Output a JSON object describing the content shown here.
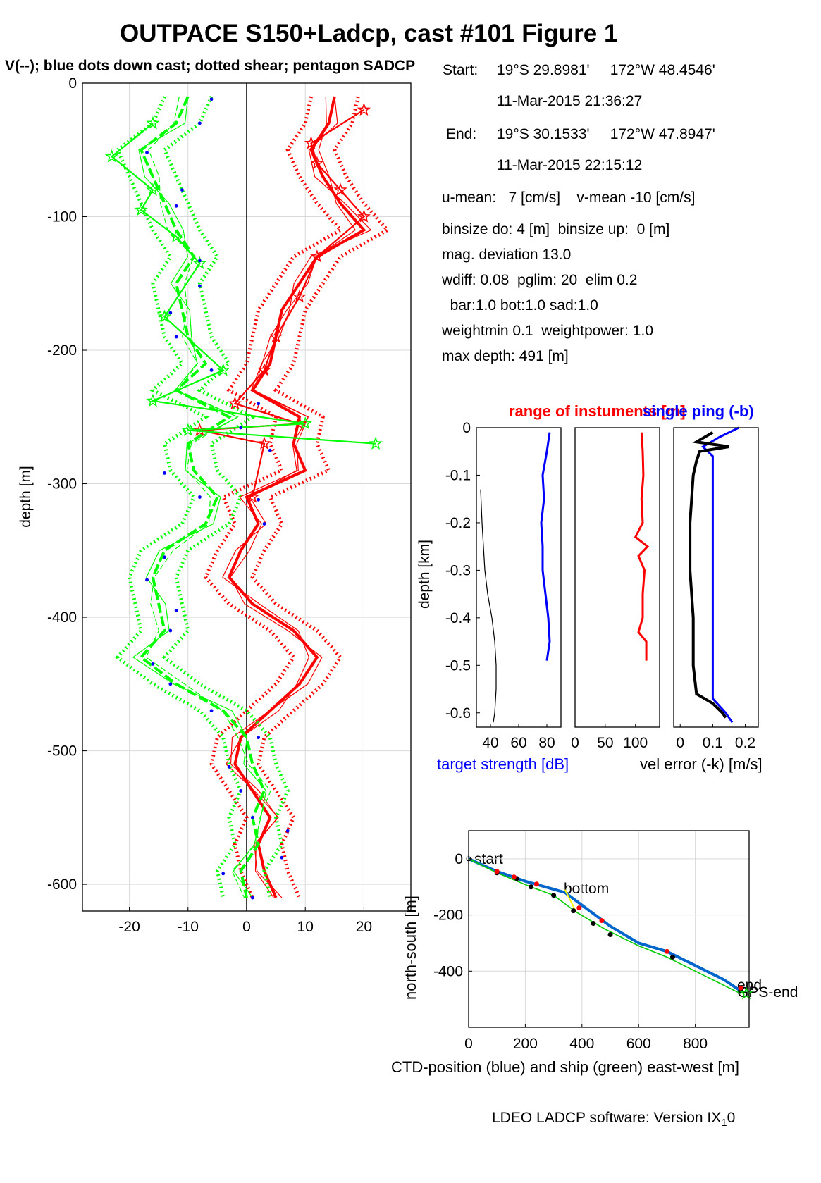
{
  "figure": {
    "title": "OUTPACE S150+Ladcp, cast #101  Figure 1",
    "subtitle": "V(--); blue dots down cast; dotted shear; pentagon SADCP",
    "footer": "LDEO LADCP software: Version IX",
    "footer_sub": "1",
    "footer_tail": "0"
  },
  "info": {
    "start_label": "Start:",
    "start_pos": "19°S 29.8981'     172°W 48.4546'",
    "start_time": "11-Mar-2015 21:36:27",
    "end_label": "End:",
    "end_pos": "19°S 30.1533'     172°W 47.8947'",
    "end_time": "11-Mar-2015 22:15:12",
    "lines": [
      "u-mean:   7 [cm/s]    v-mean -10 [cm/s]",
      "binsize do: 4 [m]  binsize up:  0 [m]",
      "mag. deviation 13.0",
      "wdiff: 0.08  pglim: 20  elim 0.2",
      "  bar:1.0 bot:1.0 sad:1.0",
      "weightmin 0.1  weightpower: 1.0",
      "max depth: 491 [m]"
    ]
  },
  "colors": {
    "u": "#ff0000",
    "v": "#00ff00",
    "blue": "#0000ff",
    "ship": "#00cc00",
    "ctd": "#0066cc"
  },
  "chart_data": [
    {
      "id": "velocity-profile",
      "type": "line",
      "ylabel": "depth [m]",
      "xlim": [
        -28,
        28
      ],
      "ylim": [
        -620,
        0
      ],
      "xticks": [
        -20,
        -10,
        0,
        10,
        20
      ],
      "yticks": [
        0,
        -100,
        -200,
        -300,
        -400,
        -500,
        -600
      ],
      "grid": true,
      "depth": [
        -10,
        -30,
        -50,
        -70,
        -90,
        -110,
        -130,
        -150,
        -170,
        -190,
        -210,
        -230,
        -250,
        -270,
        -290,
        -310,
        -330,
        -350,
        -370,
        -390,
        -410,
        -430,
        -450,
        -470,
        -490,
        -510,
        -530,
        -550,
        -570,
        -590,
        -610
      ],
      "series": [
        {
          "color": "#ff0000",
          "values": [
            15,
            14,
            11,
            13,
            16,
            20,
            12,
            9,
            6,
            5,
            4,
            1,
            9,
            8,
            10,
            0,
            2,
            -1,
            -3,
            1,
            8,
            12,
            9,
            4,
            -1,
            -2,
            1,
            4,
            2,
            3,
            5
          ]
        },
        {
          "color": "#00ff00",
          "values": [
            -10,
            -12,
            -18,
            -16,
            -14,
            -12,
            -9,
            -12,
            -11,
            -10,
            -7,
            -12,
            -3,
            -10,
            -9,
            -5,
            -7,
            -14,
            -16,
            -15,
            -14,
            -18,
            -12,
            -4,
            0,
            1,
            3,
            1,
            2,
            -1,
            0
          ]
        }
      ],
      "sadcp": [
        {
          "name": "u",
          "color": "#ff0000",
          "points": [
            [
              20,
              -20
            ],
            [
              11,
              -45
            ],
            [
              12,
              -60
            ],
            [
              16,
              -80
            ],
            [
              20,
              -100
            ],
            [
              12,
              -130
            ],
            [
              9,
              -160
            ],
            [
              5,
              -190
            ],
            [
              3,
              -215
            ],
            [
              -2,
              -240
            ],
            [
              9,
              -255
            ],
            [
              -8,
              -260
            ],
            [
              3,
              -270
            ],
            [
              1,
              -310
            ]
          ]
        },
        {
          "name": "v",
          "color": "#00ff00",
          "points": [
            [
              -16,
              -30
            ],
            [
              -23,
              -55
            ],
            [
              -16,
              -80
            ],
            [
              -18,
              -95
            ],
            [
              -12,
              -115
            ],
            [
              -8,
              -135
            ],
            [
              -14,
              -175
            ],
            [
              -4,
              -215
            ],
            [
              -16,
              -238
            ],
            [
              10,
              -255
            ],
            [
              -10,
              -260
            ],
            [
              22,
              -270
            ]
          ]
        }
      ],
      "down_cast_dots": {
        "color": "#0000ff",
        "points": [
          [
            -6,
            -12
          ],
          [
            -8,
            -30
          ],
          [
            -17,
            -52
          ],
          [
            -11,
            -80
          ],
          [
            -12,
            -92
          ],
          [
            -8,
            -133
          ],
          [
            -8,
            -152
          ],
          [
            -13,
            -172
          ],
          [
            -12,
            -190
          ],
          [
            -6,
            -215
          ],
          [
            2,
            -240
          ],
          [
            -1,
            -258
          ],
          [
            4,
            -275
          ],
          [
            -14,
            -292
          ],
          [
            -8,
            -310
          ],
          [
            2,
            -312
          ],
          [
            3,
            -330
          ],
          [
            -14,
            -355
          ],
          [
            -17,
            -372
          ],
          [
            -12,
            -395
          ],
          [
            -13,
            -410
          ],
          [
            -16,
            -435
          ],
          [
            -13,
            -450
          ],
          [
            -6,
            -470
          ],
          [
            2,
            -490
          ],
          [
            -3,
            -512
          ],
          [
            -1,
            -530
          ],
          [
            1,
            -550
          ],
          [
            7,
            -560
          ],
          [
            6,
            -580
          ],
          [
            -4,
            -592
          ],
          [
            1,
            -610
          ]
        ]
      }
    },
    {
      "id": "target-strength",
      "type": "line",
      "ylabel": "depth [km]",
      "xlabel": "target strength [dB]",
      "xlim": [
        30,
        90
      ],
      "xticks": [
        40,
        60,
        80
      ],
      "ylim": [
        -0.63,
        0
      ],
      "yticks": [
        0,
        -0.1,
        -0.2,
        -0.3,
        -0.4,
        -0.5,
        -0.6
      ],
      "series": [
        {
          "color": "#0000ff",
          "depth": [
            -0.01,
            -0.05,
            -0.1,
            -0.15,
            -0.2,
            -0.25,
            -0.3,
            -0.35,
            -0.4,
            -0.45,
            -0.49
          ],
          "values": [
            82,
            80,
            77,
            78,
            76,
            77,
            77,
            79,
            81,
            82,
            80
          ]
        },
        {
          "color": "#000000",
          "depth": [
            -0.13,
            -0.2,
            -0.3,
            -0.35,
            -0.4,
            -0.45,
            -0.5,
            -0.55,
            -0.6,
            -0.62
          ],
          "values": [
            33,
            34,
            36,
            38,
            41,
            43,
            44,
            44,
            43,
            42
          ]
        }
      ]
    },
    {
      "id": "instrument-range",
      "type": "line",
      "title": "range of instuments [m]",
      "xlim": [
        0,
        140
      ],
      "xticks": [
        0,
        50,
        100
      ],
      "ylim": [
        -0.63,
        0
      ],
      "series": [
        {
          "color": "#ff0000",
          "depth": [
            -0.01,
            -0.05,
            -0.1,
            -0.15,
            -0.2,
            -0.23,
            -0.25,
            -0.27,
            -0.3,
            -0.35,
            -0.4,
            -0.43,
            -0.45,
            -0.49
          ],
          "values": [
            110,
            112,
            113,
            110,
            112,
            100,
            120,
            105,
            115,
            112,
            112,
            105,
            118,
            118
          ]
        }
      ]
    },
    {
      "id": "velocity-error",
      "type": "line",
      "title": "single ping (-b)",
      "xlabel": "vel error (-k) [m/s]",
      "xlim": [
        -0.02,
        0.24
      ],
      "xticks": [
        0,
        0.1,
        0.2
      ],
      "ylim": [
        -0.63,
        0
      ],
      "series": [
        {
          "color": "#0000ff",
          "depth": [
            0,
            -0.02,
            -0.04,
            -0.06,
            -0.1,
            -0.2,
            -0.3,
            -0.4,
            -0.5,
            -0.57,
            -0.6,
            -0.62
          ],
          "values": [
            0.18,
            0.12,
            0.07,
            0.1,
            0.1,
            0.1,
            0.1,
            0.1,
            0.1,
            0.1,
            0.14,
            0.16
          ]
        },
        {
          "color": "#000000",
          "depth": [
            -0.01,
            -0.03,
            -0.04,
            -0.05,
            -0.07,
            -0.1,
            -0.2,
            -0.3,
            -0.4,
            -0.5,
            -0.56,
            -0.58,
            -0.6,
            -0.61
          ],
          "values": [
            0.1,
            0.05,
            0.15,
            0.06,
            0.05,
            0.04,
            0.03,
            0.03,
            0.04,
            0.04,
            0.05,
            0.1,
            0.13,
            0.14
          ]
        }
      ]
    },
    {
      "id": "position-track",
      "type": "line",
      "xlabel": "CTD-position (blue) and ship (green) east-west [m]",
      "ylabel": "north-south [m]",
      "xlim": [
        0,
        990
      ],
      "xticks": [
        0,
        200,
        400,
        600,
        800
      ],
      "ylim": [
        -600,
        100
      ],
      "yticks": [
        0,
        -200,
        -400
      ],
      "annotations": [
        "start",
        "bottom",
        "end",
        "GPS-end"
      ],
      "series": [
        {
          "name": "CTD",
          "color": "#0066cc",
          "points": [
            [
              0,
              0
            ],
            [
              100,
              -45
            ],
            [
              200,
              -80
            ],
            [
              270,
              -100
            ],
            [
              340,
              -120
            ],
            [
              420,
              -180
            ],
            [
              500,
              -240
            ],
            [
              600,
              -300
            ],
            [
              700,
              -330
            ],
            [
              800,
              -380
            ],
            [
              900,
              -430
            ],
            [
              960,
              -470
            ]
          ]
        },
        {
          "name": "ship",
          "color": "#00cc00",
          "points": [
            [
              0,
              0
            ],
            [
              100,
              -50
            ],
            [
              220,
              -100
            ],
            [
              300,
              -130
            ],
            [
              380,
              -190
            ],
            [
              480,
              -250
            ],
            [
              600,
              -310
            ],
            [
              700,
              -350
            ],
            [
              800,
              -400
            ],
            [
              960,
              -480
            ]
          ]
        }
      ],
      "markers": {
        "red": [
          [
            100,
            -45
          ],
          [
            160,
            -65
          ],
          [
            240,
            -90
          ],
          [
            390,
            -175
          ],
          [
            470,
            -220
          ],
          [
            700,
            -330
          ],
          [
            960,
            -460
          ]
        ],
        "black": [
          [
            100,
            -50
          ],
          [
            170,
            -70
          ],
          [
            220,
            -100
          ],
          [
            300,
            -130
          ],
          [
            370,
            -185
          ],
          [
            440,
            -230
          ],
          [
            500,
            -270
          ],
          [
            720,
            -350
          ],
          [
            960,
            -470
          ]
        ]
      }
    }
  ]
}
